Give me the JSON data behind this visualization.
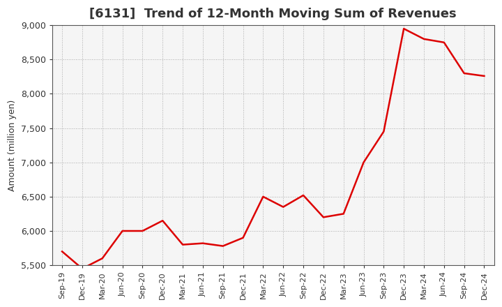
{
  "title": "[6131]  Trend of 12-Month Moving Sum of Revenues",
  "ylabel": "Amount (million yen)",
  "line_color": "#dd0000",
  "background_color": "#ffffff",
  "plot_bg_color": "#f5f5f5",
  "grid_color": "#aaaaaa",
  "ylim": [
    5500,
    9000
  ],
  "yticks": [
    5500,
    6000,
    6500,
    7000,
    7500,
    8000,
    8500,
    9000
  ],
  "x_labels": [
    "Sep-19",
    "Dec-19",
    "Mar-20",
    "Jun-20",
    "Sep-20",
    "Dec-20",
    "Mar-21",
    "Jun-21",
    "Sep-21",
    "Dec-21",
    "Mar-22",
    "Jun-22",
    "Sep-22",
    "Dec-22",
    "Mar-23",
    "Jun-23",
    "Sep-23",
    "Dec-23",
    "Mar-24",
    "Jun-24",
    "Sep-24",
    "Dec-24"
  ],
  "values": [
    5700,
    5450,
    5600,
    6000,
    6000,
    6150,
    5800,
    5820,
    5780,
    5900,
    6500,
    6350,
    6520,
    6200,
    6250,
    7000,
    7450,
    8950,
    8800,
    8750,
    8300,
    8260
  ],
  "title_fontsize": 13,
  "ylabel_fontsize": 9,
  "tick_fontsize": 9,
  "xtick_fontsize": 8,
  "line_width": 1.8
}
